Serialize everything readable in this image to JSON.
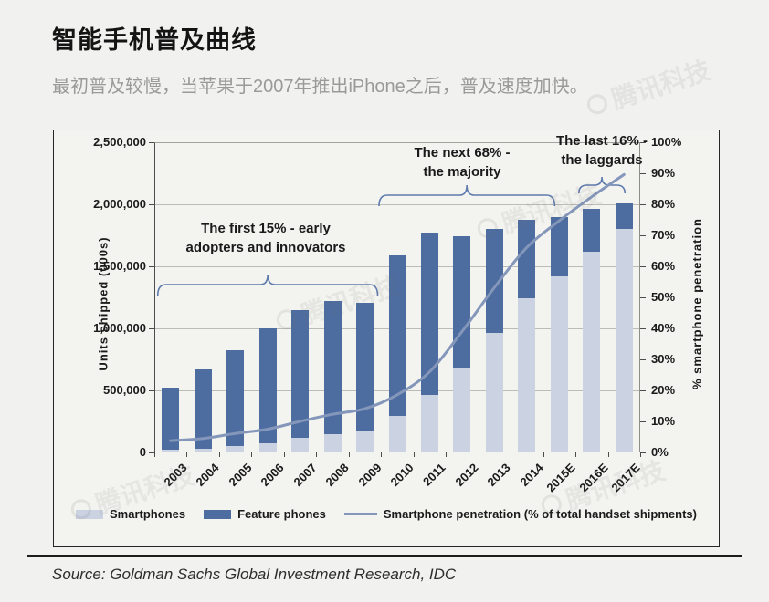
{
  "page": {
    "title": "智能手机普及曲线",
    "subtitle": "最初普及较慢，当苹果于2007年推出iPhone之后，普及速度加快。",
    "source": "Source: Goldman Sachs Global Investment Research, IDC",
    "watermark": "腾讯科技"
  },
  "colors": {
    "smartphones_bar": "#cbd2e1",
    "feature_phones_bar": "#4d6da1",
    "penetration_line": "#8497ba",
    "brace": "#5f7bad",
    "gridline": "#bcbcb7",
    "panel_border": "#262626",
    "background": "#f1f1ef"
  },
  "chart_data": {
    "type": "bar",
    "subtype": "stacked-bar-with-line",
    "title": "",
    "grid": true,
    "legend_position": "bottom",
    "categories": [
      "2003",
      "2004",
      "2005",
      "2006",
      "2007",
      "2008",
      "2009",
      "2010",
      "2011",
      "2012",
      "2013",
      "2014",
      "2015E",
      "2016E",
      "2017E"
    ],
    "series": [
      {
        "name": "Smartphones",
        "type": "bar",
        "stack": "total",
        "color": "#cbd2e1",
        "values": [
          20000,
          30000,
          50000,
          75000,
          115000,
          150000,
          170000,
          295000,
          460000,
          680000,
          960000,
          1240000,
          1420000,
          1620000,
          1800000
        ]
      },
      {
        "name": "Feature phones",
        "type": "bar",
        "stack": "total",
        "color": "#4d6da1",
        "values": [
          500000,
          640000,
          770000,
          925000,
          1035000,
          1070000,
          1035000,
          1295000,
          1310000,
          1065000,
          845000,
          635000,
          480000,
          345000,
          210000
        ]
      },
      {
        "name": "Smartphone penetration (% of total handset shipments)",
        "type": "line",
        "axis": "right",
        "color": "#8497ba",
        "values": [
          3.8,
          4.5,
          6.1,
          7.5,
          10.0,
          12.3,
          14.1,
          18.6,
          26.0,
          39.0,
          53.2,
          66.1,
          74.7,
          82.4,
          89.6
        ]
      }
    ],
    "left_axis": {
      "title": "Units shipped (000s)",
      "min": 0,
      "max": 2500000,
      "tick_values": [
        0,
        500000,
        1000000,
        1500000,
        2000000,
        2500000
      ],
      "tick_labels": [
        "0",
        "500,000",
        "1,000,000",
        "1,500,000",
        "2,000,000",
        "2,500,000"
      ]
    },
    "right_axis": {
      "title": "% smartphone penetration",
      "min": 0,
      "max": 100,
      "tick_values": [
        0,
        10,
        20,
        30,
        40,
        50,
        60,
        70,
        80,
        90,
        100
      ],
      "tick_labels": [
        "0%",
        "10%",
        "20%",
        "30%",
        "40%",
        "50%",
        "60%",
        "70%",
        "80%",
        "90%",
        "100%"
      ]
    },
    "annotations": [
      {
        "lines": [
          "The first 15% - early",
          "adopters and innovators"
        ],
        "from": "2003",
        "to": "2009"
      },
      {
        "lines": [
          "The next 68% -",
          "the majority"
        ],
        "from": "2010",
        "to": "2015E"
      },
      {
        "lines": [
          "The last 16% -",
          "the laggards"
        ],
        "from": "2016E",
        "to": "2017E"
      }
    ]
  }
}
